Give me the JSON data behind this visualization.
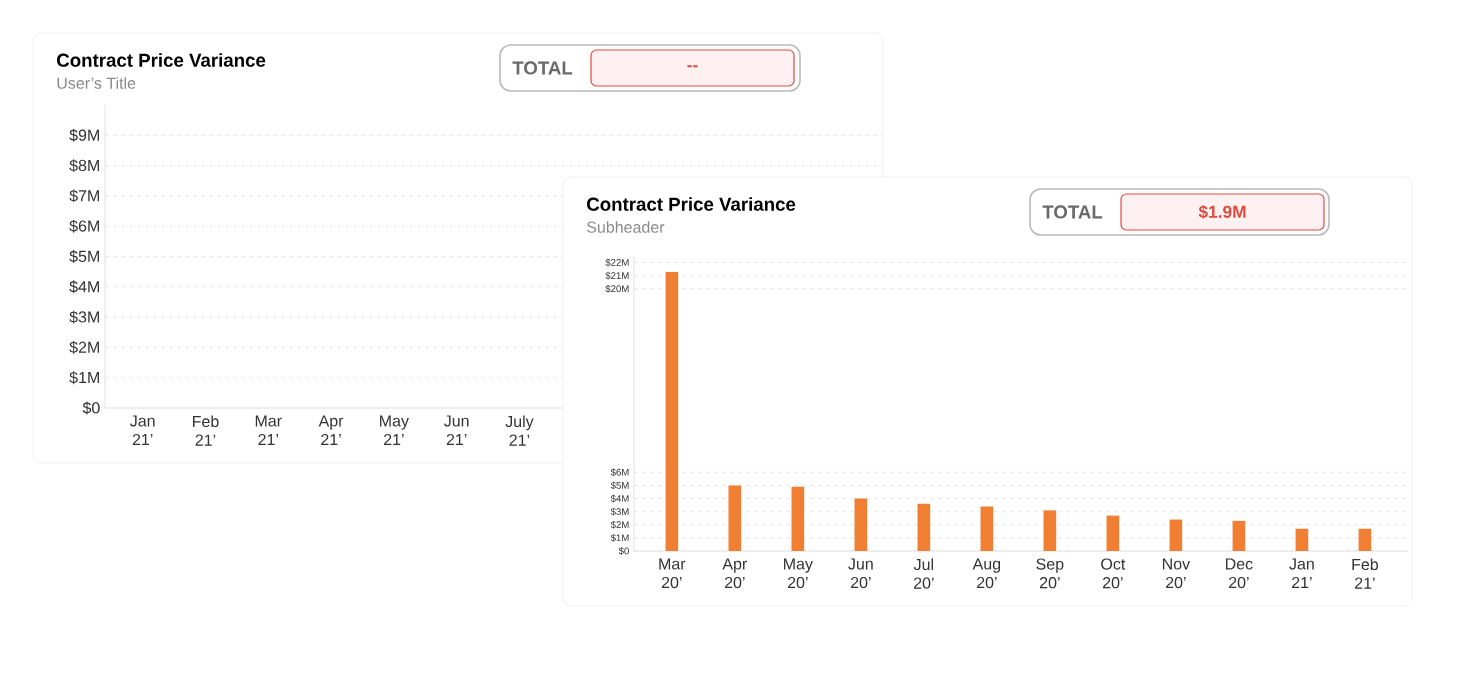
{
  "chart_data": [
    {
      "type": "bar",
      "title": "Contract Price Variance",
      "subtitle": "User’s Title",
      "categories": [
        "Jan 21’",
        "Feb 21’",
        "Mar 21’",
        "Apr 21’",
        "May 21’",
        "Jun 21’",
        "July 21’",
        null,
        null,
        null,
        null,
        null
      ],
      "values": [
        null,
        null,
        null,
        null,
        null,
        null,
        null,
        null,
        null,
        null,
        null,
        null
      ],
      "ylim": [
        0,
        10
      ],
      "yticks": [
        {
          "value": 0,
          "label": "$0"
        },
        {
          "value": 1,
          "label": "$1M"
        },
        {
          "value": 2,
          "label": "$2M"
        },
        {
          "value": 3,
          "label": "$3M"
        },
        {
          "value": 4,
          "label": "$4M"
        },
        {
          "value": 5,
          "label": "$5M"
        },
        {
          "value": 6,
          "label": "$6M"
        },
        {
          "value": 7,
          "label": "$7M"
        },
        {
          "value": 8,
          "label": "$8M"
        },
        {
          "value": 9,
          "label": "$9M"
        }
      ],
      "grid": "y",
      "annotations": [
        "TOTAL",
        "--"
      ]
    },
    {
      "type": "bar",
      "title": "Contract Price Variance",
      "subtitle": "Subheader",
      "color": "#f07f34",
      "categories": [
        "Mar 20’",
        "Apr 20’",
        "May 20’",
        "Jun 20’",
        "Jul 20’",
        "Aug 20’",
        "Sep 20’",
        "Oct 20’",
        "Nov 20’",
        "Dec 20’",
        "Jan 21’",
        "Feb 21’"
      ],
      "values": [
        21.3,
        5.0,
        4.9,
        4.0,
        3.6,
        3.4,
        3.1,
        2.7,
        2.4,
        2.3,
        1.7,
        1.7
      ],
      "ylim": [
        0,
        22.5
      ],
      "yticks": [
        {
          "value": 0,
          "label": "$0"
        },
        {
          "value": 1,
          "label": "$1M"
        },
        {
          "value": 2,
          "label": "$2M"
        },
        {
          "value": 3,
          "label": "$3M"
        },
        {
          "value": 4,
          "label": "$4M"
        },
        {
          "value": 5,
          "label": "$5M"
        },
        {
          "value": 6,
          "label": "$6M"
        },
        {
          "value": 20,
          "label": "$20M"
        },
        {
          "value": 21,
          "label": "$21M"
        },
        {
          "value": 22,
          "label": "$22M"
        }
      ],
      "grid": "y",
      "annotations": [
        "TOTAL",
        "$1.9M"
      ]
    }
  ]
}
